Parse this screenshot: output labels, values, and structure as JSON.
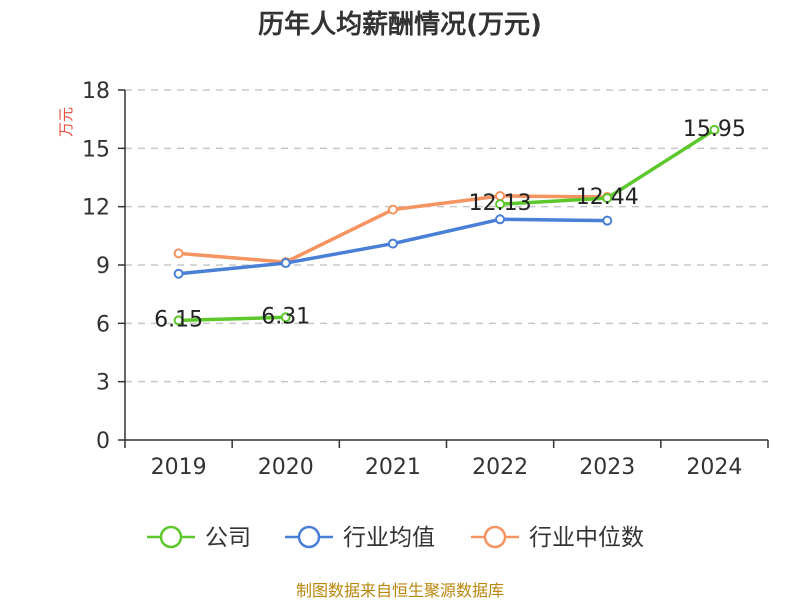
{
  "chart_data": {
    "type": "line",
    "title": "历年人均薪酬情况(万元)",
    "ylabel": "万元",
    "xlabel": "",
    "categories": [
      "2019",
      "2020",
      "2021",
      "2022",
      "2023",
      "2024"
    ],
    "ylim": [
      0,
      18
    ],
    "yticks": [
      0,
      3,
      6,
      9,
      12,
      15,
      18
    ],
    "grid": true,
    "legend_position": "bottom",
    "series": [
      {
        "name": "公司",
        "color": "#5cc82c",
        "values": [
          6.15,
          6.31,
          null,
          12.13,
          12.44,
          15.95
        ],
        "labels": [
          "6.15",
          "6.31",
          null,
          "12.13",
          "12.44",
          "15.95"
        ]
      },
      {
        "name": "行业均值",
        "color": "#4a7fd8",
        "values": [
          8.55,
          9.1,
          10.1,
          11.35,
          11.28,
          null
        ]
      },
      {
        "name": "行业中位数",
        "color": "#f59361",
        "values": [
          9.6,
          9.15,
          11.85,
          12.55,
          12.5,
          null
        ]
      }
    ]
  },
  "source": "制图数据来自恒生聚源数据库"
}
